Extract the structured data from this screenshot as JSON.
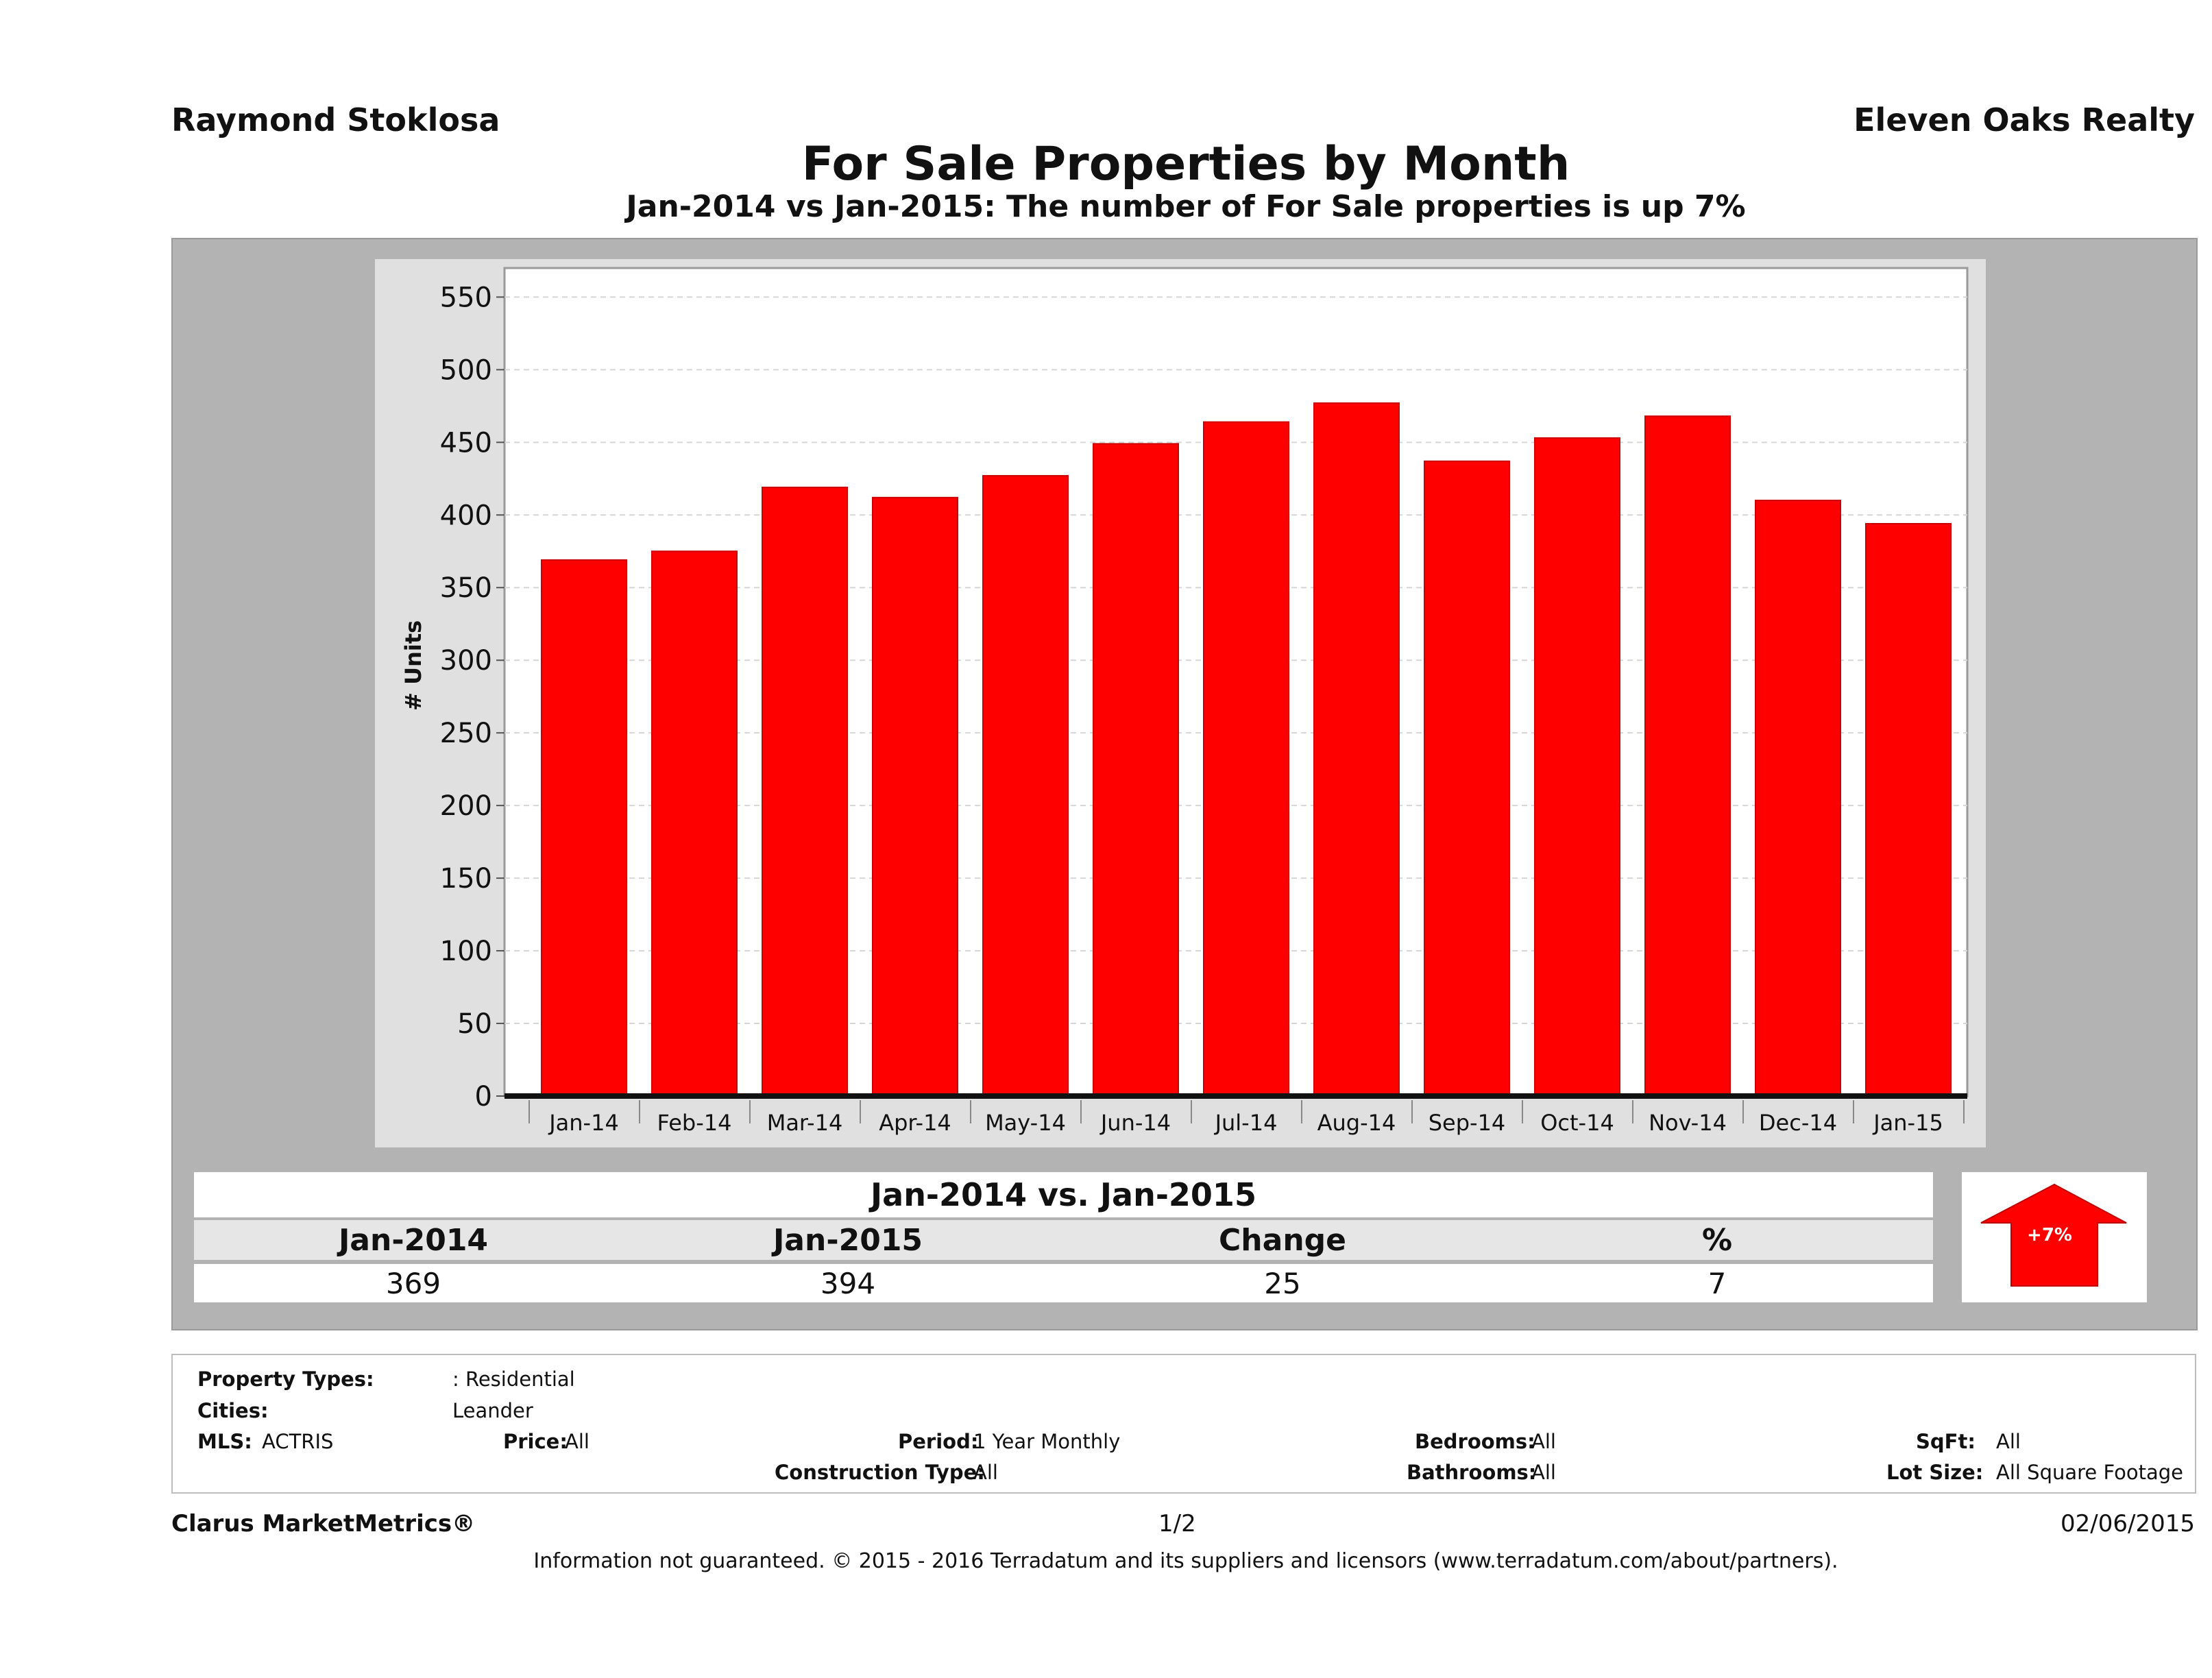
{
  "header": {
    "agent": "Raymond Stoklosa",
    "company": "Eleven Oaks Realty",
    "title": "For Sale Properties by Month",
    "subtitle": "Jan-2014 vs Jan-2015: The number of For Sale  properties is up 7%"
  },
  "chart_data": {
    "type": "bar",
    "categories": [
      "Jan-14",
      "Feb-14",
      "Mar-14",
      "Apr-14",
      "May-14",
      "Jun-14",
      "Jul-14",
      "Aug-14",
      "Sep-14",
      "Oct-14",
      "Nov-14",
      "Dec-14",
      "Jan-15"
    ],
    "values": [
      369,
      375,
      419,
      412,
      427,
      449,
      464,
      477,
      437,
      453,
      468,
      410,
      394
    ],
    "ylabel": "# Units",
    "xlabel": "",
    "ylim": [
      0,
      570
    ],
    "yticks": [
      0,
      50,
      100,
      150,
      200,
      250,
      300,
      350,
      400,
      450,
      500,
      550
    ],
    "grid": true,
    "colors": {
      "bar": "#ff0000",
      "bar_edge": "#cc0000",
      "panel": "#b3b3b3",
      "plot_bg": "#ffffff",
      "frame_bg": "#e0e0e0"
    }
  },
  "stats": {
    "title": "Jan-2014 vs. Jan-2015",
    "headers": [
      "Jan-2014",
      "Jan-2015",
      "Change",
      "%"
    ],
    "values": [
      "369",
      "394",
      "25",
      "7"
    ],
    "badge_label": "+7%",
    "badge_icon": "up-arrow-icon"
  },
  "filters": {
    "property_types_label": "Property Types:",
    "property_types_value": ": Residential",
    "cities_label": "Cities:",
    "cities_value": "Leander",
    "mls_label": "MLS:",
    "mls_value": "ACTRIS",
    "price_label": "Price:",
    "price_value": "All",
    "period_label": "Period:",
    "period_value": "1 Year Monthly",
    "construction_label": "Construction Type:",
    "construction_value": "All",
    "bedrooms_label": "Bedrooms:",
    "bedrooms_value": "All",
    "bathrooms_label": "Bathrooms:",
    "bathrooms_value": "All",
    "sqft_label": "SqFt:",
    "sqft_value": "All",
    "lotsize_label": "Lot Size:",
    "lotsize_value": "All Square Footage"
  },
  "footer": {
    "brand": "Clarus MarketMetrics®",
    "page": "1/2",
    "date": "02/06/2015",
    "note": "Information not guaranteed. © 2015 - 2016 Terradatum and its suppliers and licensors (www.terradatum.com/about/partners)."
  }
}
